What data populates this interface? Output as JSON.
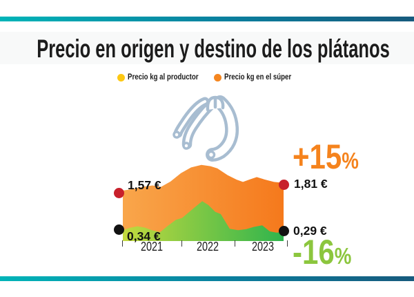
{
  "title": "Precio en origen y destino de los plátanos",
  "accent": {
    "border_gradient": [
      "#00b4b8",
      "#0a7f9e",
      "#175a7d"
    ],
    "title_color": "#1c1c1c"
  },
  "legend": [
    {
      "label": "Precio kg al productor",
      "color": "#fdc813"
    },
    {
      "label": "Precio kg en el súper",
      "color": "#f5861f"
    }
  ],
  "banana_icon_color": "#a8bdd1",
  "chart_data": {
    "type": "area",
    "unit": "EUR per kg",
    "x_years": [
      "2021",
      "2022",
      "2023"
    ],
    "ylim": [
      0,
      2.45
    ],
    "series": [
      {
        "name": "Precio kg en el súper",
        "start_label": "1,57 €",
        "end_label": "1,81 €",
        "change": {
          "value": "+15",
          "suffix": "%"
        },
        "change_color": "#f5831d",
        "marker_color": "#c8202b",
        "gradient": [
          "#f9a64b",
          "#f5791c"
        ],
        "points": [
          [
            0.0,
            1.57
          ],
          [
            0.064,
            1.62
          ],
          [
            0.124,
            1.69
          ],
          [
            0.185,
            1.73
          ],
          [
            0.236,
            1.68
          ],
          [
            0.296,
            1.85
          ],
          [
            0.361,
            2.11
          ],
          [
            0.425,
            2.29
          ],
          [
            0.489,
            2.37
          ],
          [
            0.545,
            2.33
          ],
          [
            0.588,
            2.26
          ],
          [
            0.652,
            2.05
          ],
          [
            0.708,
            1.91
          ],
          [
            0.747,
            1.84
          ],
          [
            0.79,
            1.92
          ],
          [
            0.833,
            1.99
          ],
          [
            0.88,
            1.92
          ],
          [
            0.94,
            1.84
          ],
          [
            1.0,
            1.81
          ]
        ]
      },
      {
        "name": "Precio kg al productor",
        "start_label": "0,34 €",
        "end_label": "0,29 €",
        "change": {
          "value": "-16",
          "suffix": "%"
        },
        "change_color": "#8cc63e",
        "marker_color": "#121212",
        "gradient": [
          "#c3d93e",
          "#2fb44d"
        ],
        "points": [
          [
            0.0,
            0.34
          ],
          [
            0.043,
            0.41
          ],
          [
            0.09,
            0.46
          ],
          [
            0.137,
            0.42
          ],
          [
            0.185,
            0.33
          ],
          [
            0.232,
            0.28
          ],
          [
            0.279,
            0.47
          ],
          [
            0.33,
            0.66
          ],
          [
            0.369,
            0.72
          ],
          [
            0.442,
            1.03
          ],
          [
            0.494,
            1.24
          ],
          [
            0.532,
            1.12
          ],
          [
            0.575,
            0.91
          ],
          [
            0.609,
            0.84
          ],
          [
            0.665,
            0.38
          ],
          [
            0.717,
            0.34
          ],
          [
            0.768,
            0.37
          ],
          [
            0.815,
            0.44
          ],
          [
            0.867,
            0.49
          ],
          [
            0.914,
            0.3
          ],
          [
            0.957,
            0.26
          ],
          [
            1.0,
            0.29
          ]
        ]
      }
    ]
  }
}
